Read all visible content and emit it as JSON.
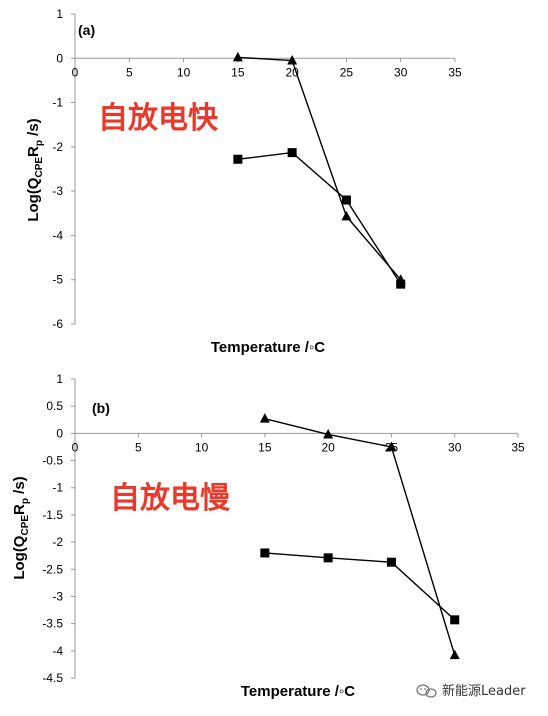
{
  "chart_data": [
    {
      "type": "line",
      "panel_label": "(a)",
      "annotation": "自放电快",
      "xlabel": "Temperature /◦C",
      "ylabel": [
        "Log(Q",
        "CPE",
        "R",
        "p",
        " /s)"
      ],
      "xlim": [
        0,
        35
      ],
      "ylim": [
        -6,
        1
      ],
      "xticks": [
        0,
        5,
        10,
        15,
        20,
        25,
        30,
        35
      ],
      "yticks": [
        1,
        0,
        -1,
        -2,
        -3,
        -4,
        -5,
        -6
      ],
      "grid": false,
      "legend": "none",
      "series": [
        {
          "marker": "square",
          "x": [
            15,
            20,
            25,
            30
          ],
          "y": [
            -2.28,
            -2.13,
            -3.2,
            -5.1
          ]
        },
        {
          "marker": "triangle",
          "x": [
            15,
            20,
            25,
            30
          ],
          "y": [
            0.02,
            -0.05,
            -3.57,
            -5.0
          ]
        }
      ]
    },
    {
      "type": "line",
      "panel_label": "(b)",
      "annotation": "自放电慢",
      "xlabel": "Temperature /◦C",
      "ylabel": [
        "Log(Q",
        "CPE",
        "R",
        "p",
        " /s)"
      ],
      "xlim": [
        0,
        35
      ],
      "ylim": [
        -4.5,
        1
      ],
      "xticks": [
        0,
        5,
        10,
        15,
        20,
        25,
        30,
        35
      ],
      "yticks": [
        1,
        0.5,
        0,
        -0.5,
        -1,
        -1.5,
        -2,
        -2.5,
        -3,
        -3.5,
        -4,
        -4.5
      ],
      "grid": false,
      "legend": "none",
      "series": [
        {
          "marker": "square",
          "x": [
            15,
            20,
            25,
            30
          ],
          "y": [
            -2.2,
            -2.29,
            -2.37,
            -3.43
          ]
        },
        {
          "marker": "triangle",
          "x": [
            15,
            20,
            25,
            30
          ],
          "y": [
            0.27,
            -0.02,
            -0.25,
            -4.08
          ]
        }
      ]
    }
  ],
  "colors": {
    "annotation": "#e8392a",
    "marks": "#000000"
  },
  "watermark": {
    "text": "新能源Leader",
    "icon": "wechat-icon"
  }
}
